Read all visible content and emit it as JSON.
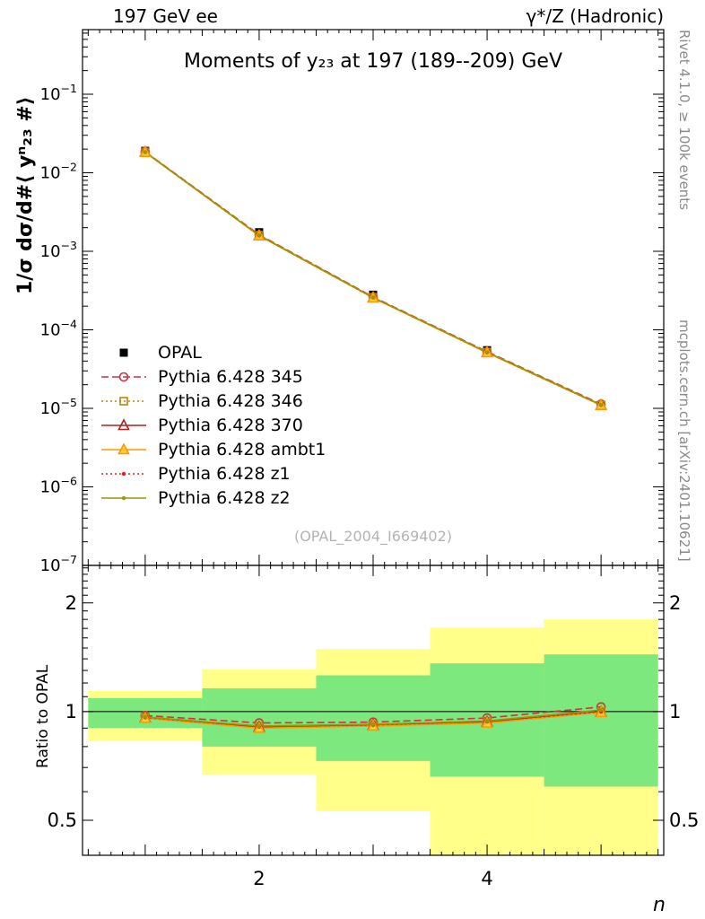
{
  "header": {
    "left": "197 GeV ee",
    "right": "γ*/Z (Hadronic)"
  },
  "main_plot": {
    "title": "Moments of y₂₃ at 197 (189--209) GeV",
    "ylabel": "1/σ  dσ/d#⟨ yⁿ₂₃ #⟩",
    "watermark": "(OPAL_2004_I669402)"
  },
  "ratio_plot": {
    "ylabel": "Ratio to OPAL"
  },
  "xaxis": {
    "label": "n"
  },
  "side_texts": {
    "top": "Rivet 4.1.0, ≥ 100k events",
    "bottom": "mcplots.cern.ch [arXiv:2401.10621]"
  },
  "colors": {
    "band_yellow": "#ffff8a",
    "band_green": "#7de87d",
    "data_marker": "#000000"
  },
  "chart_data": {
    "type": "line",
    "x": [
      1,
      2,
      3,
      4,
      5
    ],
    "xlim": [
      0.45,
      5.55
    ],
    "xticks_labeled": [
      2,
      4
    ],
    "main": {
      "ylog": true,
      "ylim": [
        1e-07,
        0.665
      ],
      "ydecades": [
        -1,
        -2,
        -3,
        -4,
        -5,
        -6,
        -7
      ],
      "opal": {
        "name": "OPAL",
        "values": [
          0.019,
          0.00175,
          0.00028,
          5.5e-05,
          1.1e-05
        ],
        "err_frac": [
          0.05,
          0.06,
          0.1,
          0.09,
          0.09
        ]
      },
      "series": [
        {
          "name": "Pythia 6.428 345",
          "color": "#cc3344",
          "dash": "dashed",
          "marker": "circle-open",
          "mfill": "none",
          "ratio": [
            0.975,
            0.93,
            0.935,
            0.96,
            1.03
          ]
        },
        {
          "name": "Pythia 6.428 346",
          "color": "#b8860b",
          "dash": "dotted",
          "marker": "square-open",
          "mfill": "none",
          "ratio": [
            0.965,
            0.91,
            0.92,
            0.94,
            1.0
          ]
        },
        {
          "name": "Pythia 6.428 370",
          "color": "#aa2222",
          "dash": "solid",
          "marker": "triangle-open",
          "mfill": "none",
          "ratio": [
            0.962,
            0.906,
            0.917,
            0.936,
            0.998
          ]
        },
        {
          "name": "Pythia 6.428 ambt1",
          "color": "#ff9900",
          "dash": "solid",
          "marker": "triangle-open",
          "mfill": "#ffcc40",
          "ratio": [
            0.958,
            0.9,
            0.912,
            0.93,
            0.995
          ]
        },
        {
          "name": "Pythia 6.428 z1",
          "color": "#dd2222",
          "dash": "dotted",
          "marker": "dot",
          "mfill": "none",
          "ratio": [
            0.963,
            0.908,
            0.918,
            0.938,
            1.0
          ]
        },
        {
          "name": "Pythia 6.428 z2",
          "color": "#999900",
          "dash": "solid",
          "marker": "dot",
          "mfill": "none",
          "ratio": [
            0.966,
            0.912,
            0.922,
            0.942,
            1.01
          ]
        }
      ]
    },
    "ratio": {
      "ylog": true,
      "ylim": [
        0.4,
        2.54
      ],
      "yticks": [
        2,
        1,
        0.5
      ],
      "bands": [
        {
          "x": [
            0.5,
            1.5
          ],
          "yellow": [
            0.83,
            1.14
          ],
          "green": [
            0.9,
            1.09
          ]
        },
        {
          "x": [
            1.5,
            2.5
          ],
          "yellow": [
            0.67,
            1.31
          ],
          "green": [
            0.8,
            1.16
          ]
        },
        {
          "x": [
            2.5,
            3.5
          ],
          "yellow": [
            0.53,
            1.49
          ],
          "green": [
            0.73,
            1.26
          ]
        },
        {
          "x": [
            3.5,
            4.5
          ],
          "yellow": [
            0.4,
            1.71
          ],
          "green": [
            0.66,
            1.36
          ]
        },
        {
          "x": [
            4.5,
            5.5
          ],
          "yellow": [
            0.4,
            1.8
          ],
          "green": [
            0.62,
            1.44
          ]
        }
      ]
    }
  }
}
